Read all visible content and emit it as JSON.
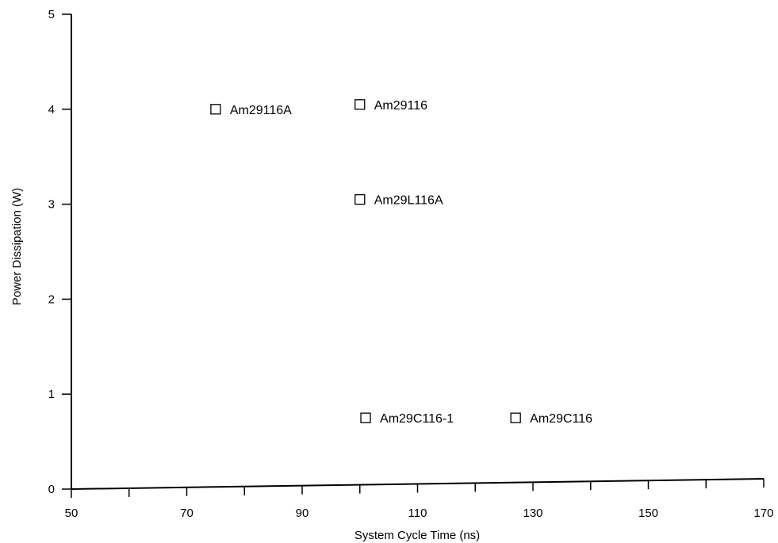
{
  "chart_data": {
    "type": "scatter",
    "xlabel": "System Cycle Time (ns)",
    "ylabel": "Power Dissipation (W)",
    "xlim": [
      50,
      170
    ],
    "ylim": [
      0,
      5
    ],
    "x_major_ticks": [
      50,
      70,
      90,
      110,
      130,
      150,
      170
    ],
    "x_minor_ticks": [
      60,
      80,
      100,
      120,
      140,
      160
    ],
    "y_ticks": [
      0,
      1,
      2,
      3,
      4,
      5
    ],
    "x_tick_labels": [
      "50",
      "70",
      "90",
      "110",
      "130",
      "150",
      "170"
    ],
    "y_tick_labels": [
      "0",
      "1",
      "2",
      "3",
      "4",
      "5"
    ],
    "grid": false,
    "marker": "open-square",
    "points": [
      {
        "label": "Am29116A",
        "x": 75,
        "y": 4.0
      },
      {
        "label": "Am29116",
        "x": 100,
        "y": 4.05
      },
      {
        "label": "Am29L116A",
        "x": 100,
        "y": 3.05
      },
      {
        "label": "Am29C116-1",
        "x": 101,
        "y": 0.75
      },
      {
        "label": "Am29C116",
        "x": 127,
        "y": 0.75
      }
    ]
  }
}
